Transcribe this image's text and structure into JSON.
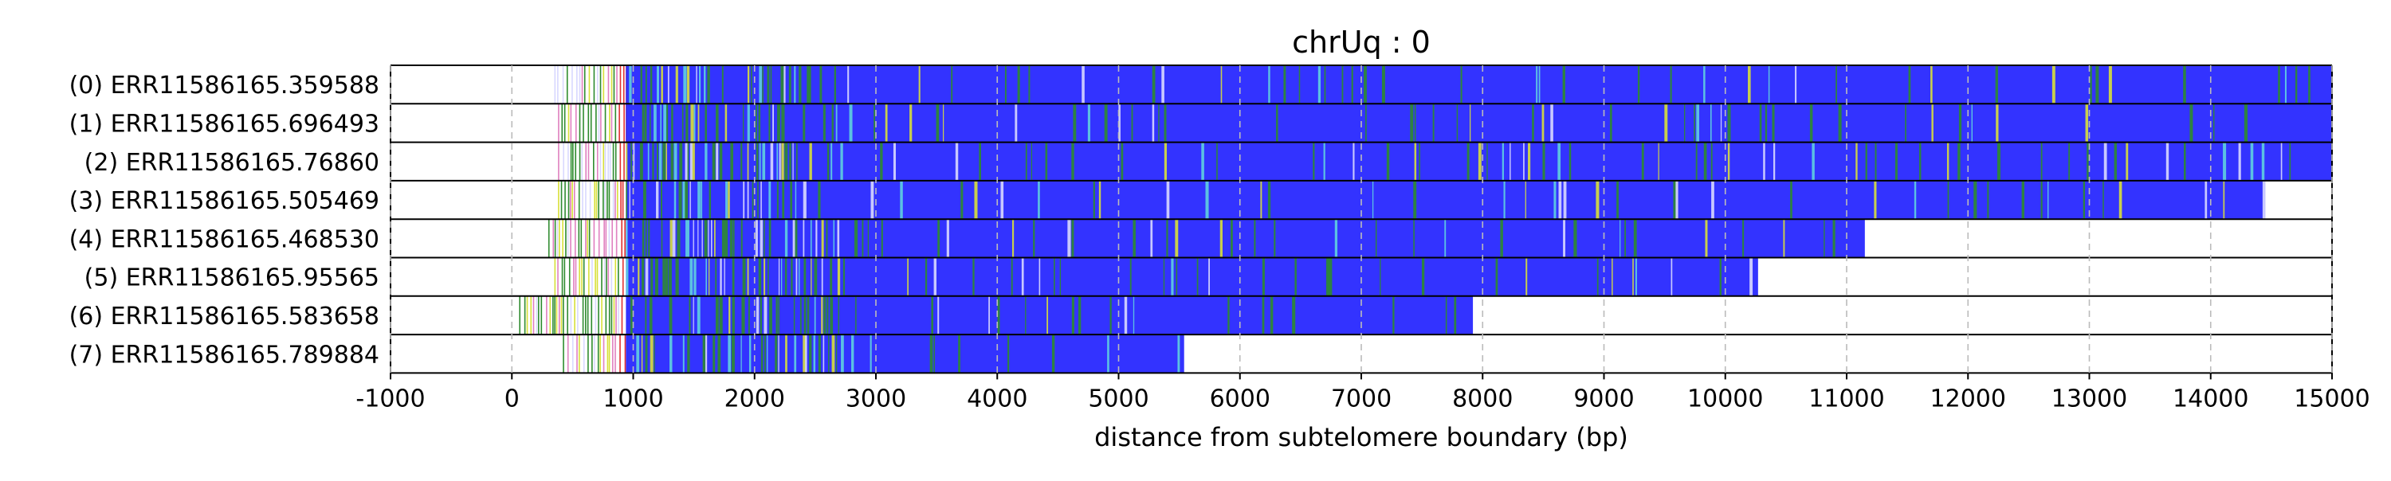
{
  "chart_data": {
    "type": "heatmap",
    "title": "chrUq : 0",
    "xlabel": "distance from subtelomere boundary (bp)",
    "ylabel": "",
    "xlim": [
      -1000,
      15000
    ],
    "xticks": [
      -1000,
      0,
      1000,
      2000,
      3000,
      4000,
      5000,
      6000,
      7000,
      8000,
      9000,
      10000,
      11000,
      12000,
      13000,
      14000,
      15000
    ],
    "grid": "vertical dashed",
    "colors": {
      "repeat": "#3333ff",
      "green": "#2e8b2e",
      "yellow": "#d8e03a",
      "cyan": "#5fd0e0",
      "light": "#d8d8ff",
      "red": "#e03030",
      "pink": "#e080c0",
      "grid": "#bbbbbb"
    },
    "reads": [
      {
        "label": "(0) ERR11586165.359588",
        "start": 350,
        "end": 15000
      },
      {
        "label": "(1) ERR11586165.696493",
        "start": 380,
        "end": 15000
      },
      {
        "label": "(2) ERR11586165.76860",
        "start": 380,
        "end": 15000
      },
      {
        "label": "(3) ERR11586165.505469",
        "start": 380,
        "end": 14450
      },
      {
        "label": "(4) ERR11586165.468530",
        "start": 300,
        "end": 11150
      },
      {
        "label": "(5) ERR11586165.95565",
        "start": 350,
        "end": 10270
      },
      {
        "label": "(6) ERR11586165.583658",
        "start": 60,
        "end": 7920
      },
      {
        "label": "(7) ERR11586165.789884",
        "start": 420,
        "end": 5540
      }
    ]
  }
}
